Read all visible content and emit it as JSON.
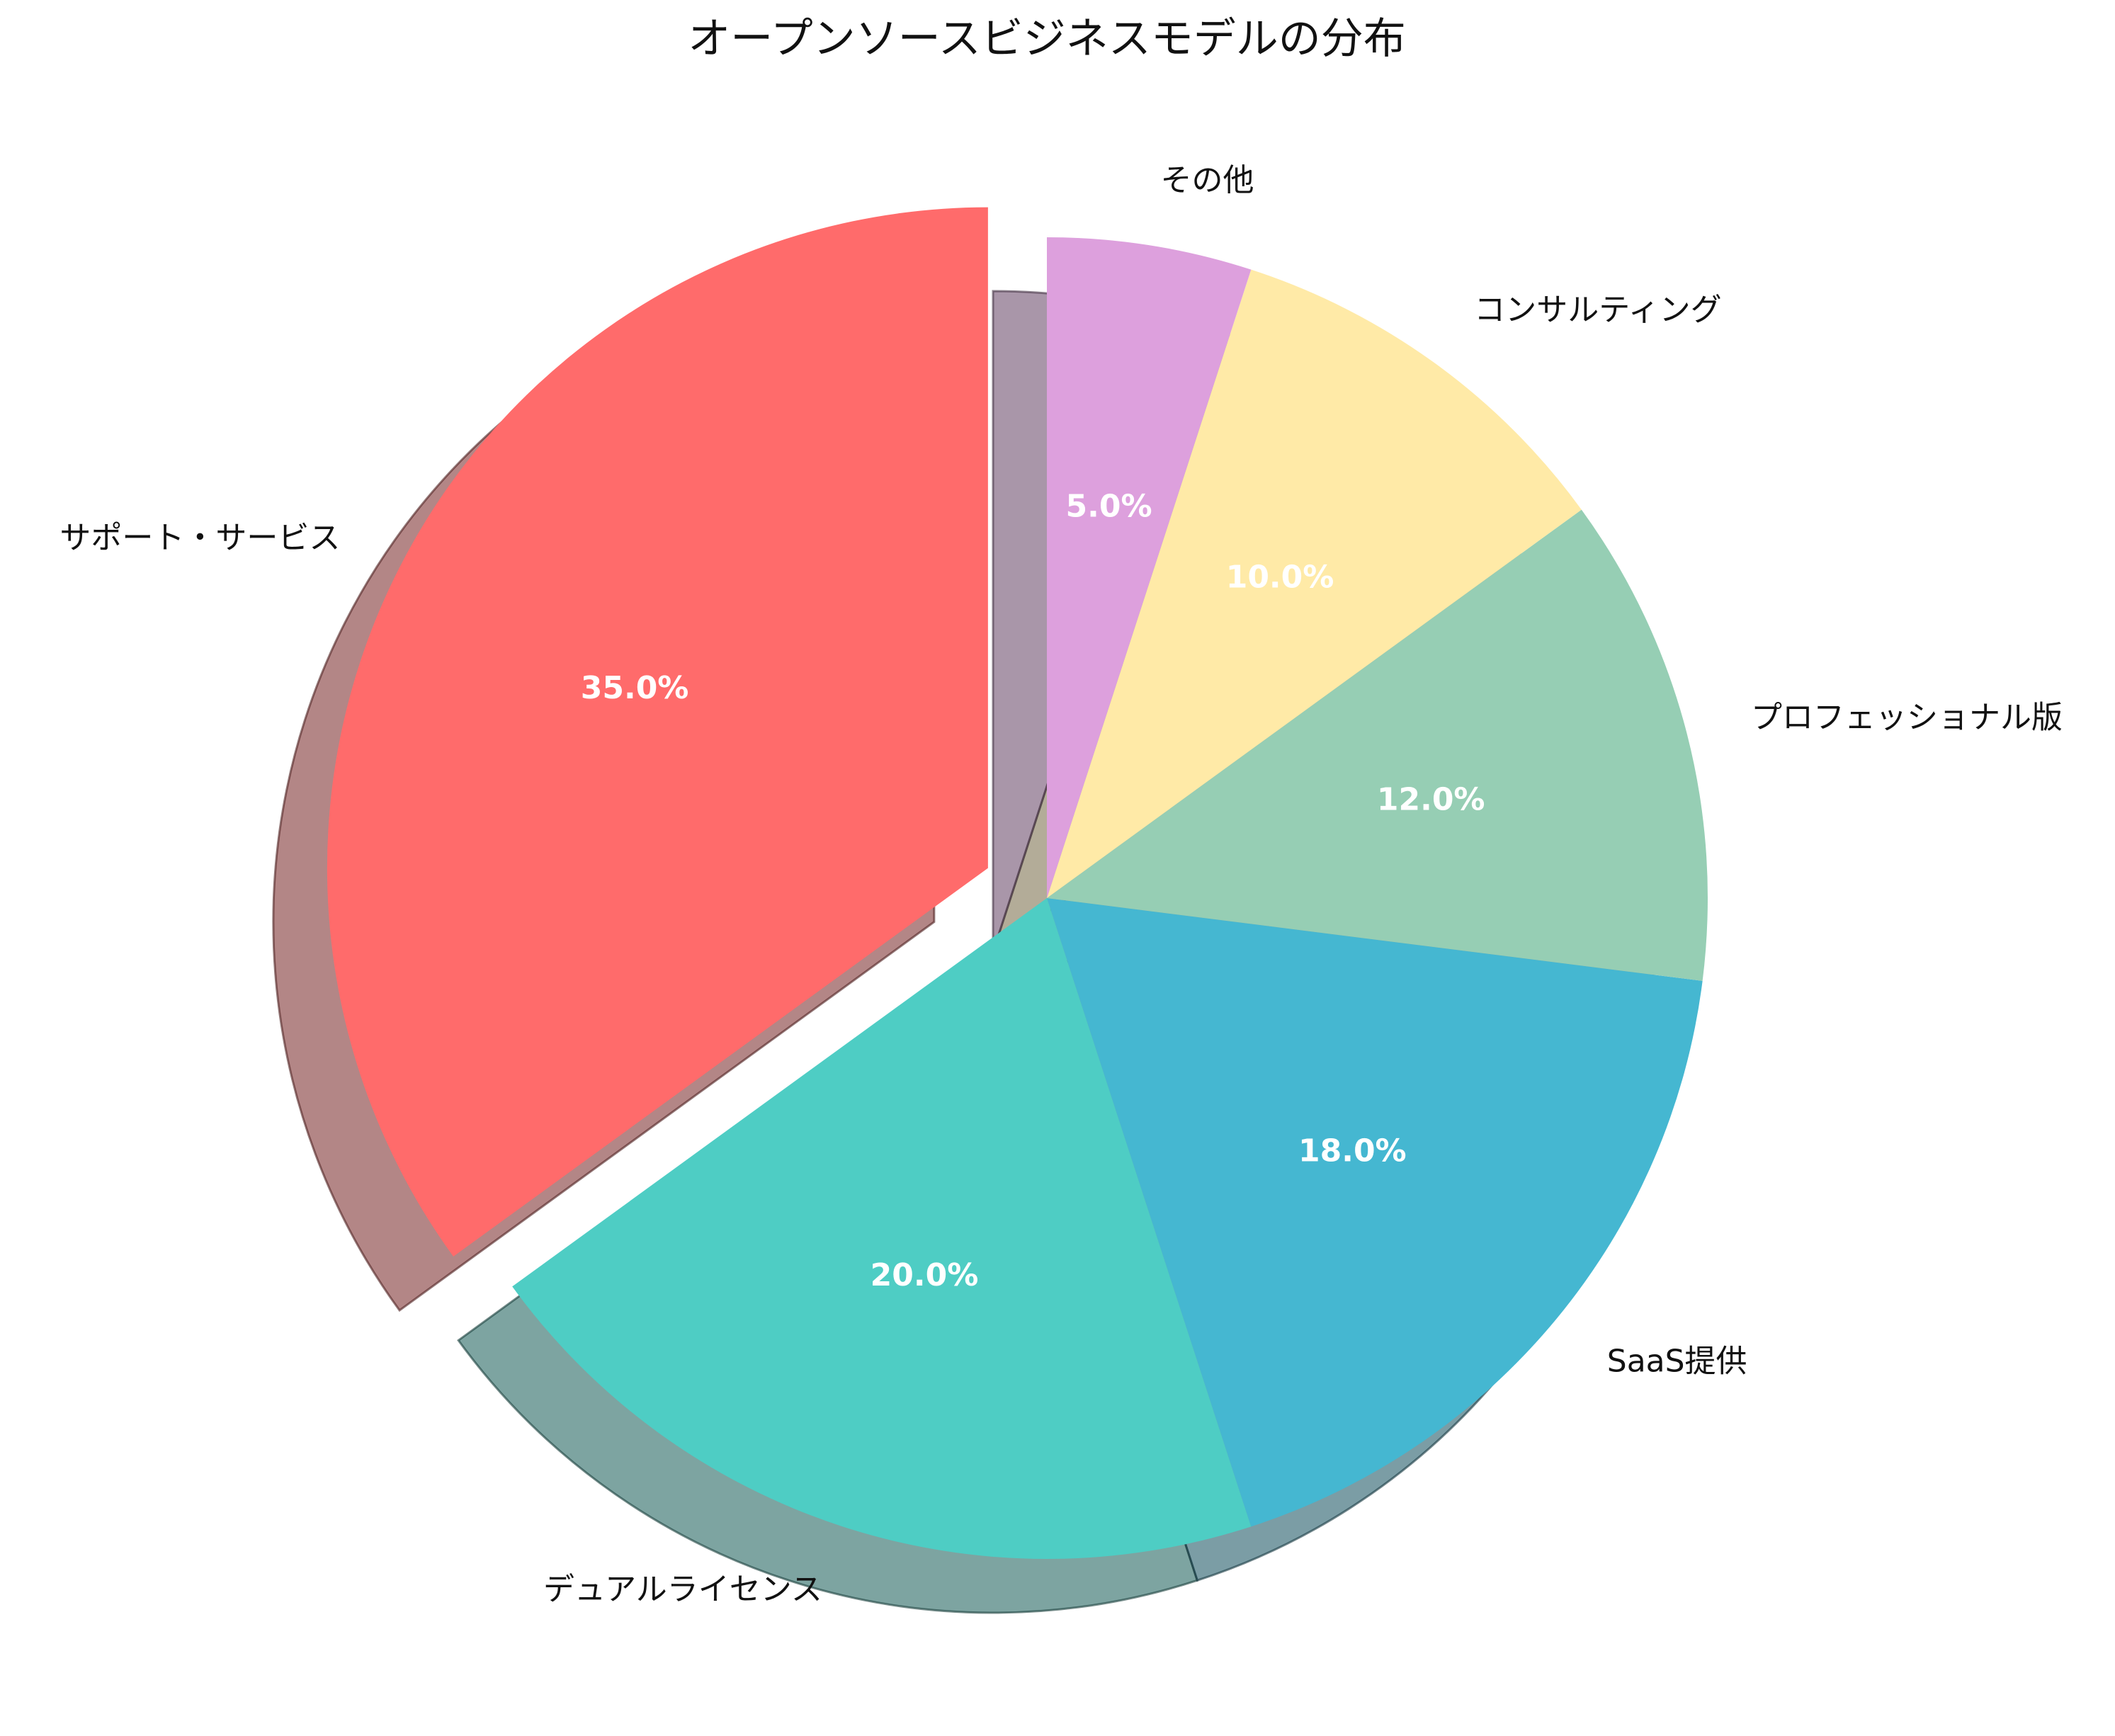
{
  "chart_data": {
    "type": "pie",
    "title": "オープンソースビジネスモデルの分布",
    "categories": [
      "サポート・サービス",
      "デュアルライセンス",
      "SaaS提供",
      "プロフェッショナル版",
      "コンサルティング",
      "その他"
    ],
    "values": [
      35.0,
      20.0,
      18.0,
      12.0,
      10.0,
      5.0
    ],
    "value_labels": [
      "35.0%",
      "20.0%",
      "18.0%",
      "12.0%",
      "10.0%",
      "5.0%"
    ],
    "colors": [
      "#FF6B6B",
      "#4ECDC4",
      "#45B7D1",
      "#96CEB4",
      "#FFEAA7",
      "#DDA0DD"
    ],
    "exploded": [
      "サポート・サービス"
    ],
    "shadow": true,
    "start_angle_deg": 90,
    "direction": "counterclockwise",
    "legend": false
  }
}
